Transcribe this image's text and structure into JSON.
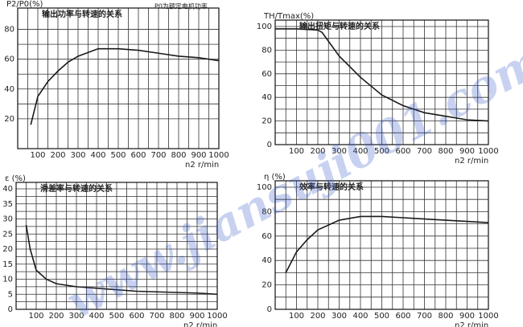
{
  "chart_data": [
    {
      "type": "line",
      "title": "输出功率与转速的关系",
      "note": "P0为额定电机功率",
      "ylabel": "P2/P0(%)",
      "xlabel": "n2  r/min",
      "color": "#1a1a1a",
      "x": [
        65,
        100,
        150,
        200,
        250,
        300,
        400,
        500,
        600,
        700,
        800,
        900,
        1000
      ],
      "values": [
        16,
        35,
        45,
        52,
        58,
        62,
        67,
        67,
        66,
        64,
        62,
        61,
        59
      ],
      "xlim": [
        0,
        1000
      ],
      "xticks": [
        100,
        200,
        300,
        400,
        500,
        600,
        700,
        800,
        900,
        1000
      ],
      "ylim": [
        0,
        90
      ],
      "yticks": [
        20,
        40,
        60,
        80
      ],
      "grid": true
    },
    {
      "type": "line",
      "title": "输出扭矩与转速的关系",
      "ylabel": "TH/Tmax(%)",
      "xlabel": "n2  r/min",
      "color": "#1a1a1a",
      "x": [
        0,
        100,
        200,
        220,
        300,
        400,
        500,
        600,
        700,
        800,
        900,
        1000
      ],
      "values": [
        98,
        98,
        97,
        95,
        75,
        57,
        42,
        33,
        27,
        24,
        21,
        20
      ],
      "xlim": [
        0,
        1000
      ],
      "xticks": [
        100,
        200,
        300,
        400,
        500,
        600,
        700,
        800,
        900,
        1000
      ],
      "ylim": [
        0,
        100
      ],
      "yticks": [
        0,
        20,
        40,
        60,
        80,
        100
      ],
      "grid": true
    },
    {
      "type": "line",
      "title": "滑差率与转速的关系",
      "ylabel": "ε (%)",
      "xlabel": "n2  r/min",
      "color": "#1a1a1a",
      "x": [
        50,
        70,
        100,
        150,
        200,
        300,
        400,
        500,
        600,
        700,
        800,
        900,
        1000
      ],
      "values": [
        28,
        20,
        13,
        10,
        8.5,
        7.5,
        7,
        6.5,
        6,
        5.8,
        5.6,
        5.4,
        5
      ],
      "xlim": [
        0,
        1000
      ],
      "xticks": [
        100,
        200,
        300,
        400,
        500,
        600,
        700,
        800,
        900,
        1000
      ],
      "ylim": [
        0,
        40
      ],
      "yticks": [
        0,
        5,
        10,
        15,
        20,
        25,
        30,
        35,
        40
      ],
      "grid": true
    },
    {
      "type": "line",
      "title": "效率与转速的关系",
      "ylabel": "η (%)",
      "xlabel": "n2  r/min",
      "color": "#1a1a1a",
      "x": [
        50,
        100,
        150,
        200,
        300,
        400,
        500,
        600,
        700,
        800,
        900,
        1000
      ],
      "values": [
        30,
        47,
        57,
        65,
        73,
        76,
        76,
        75,
        74,
        73,
        72,
        71
      ],
      "xlim": [
        0,
        1000
      ],
      "xticks": [
        100,
        200,
        300,
        400,
        500,
        600,
        700,
        800,
        900,
        1000
      ],
      "ylim": [
        0,
        100
      ],
      "yticks": [
        0,
        20,
        40,
        60,
        80,
        100
      ],
      "grid": true
    }
  ],
  "watermark": "www.jiansuji001.com"
}
